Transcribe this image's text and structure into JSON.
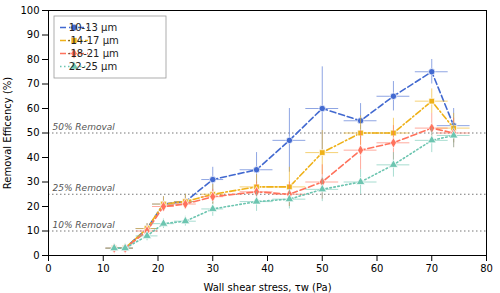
{
  "chart_data": {
    "type": "line",
    "xlabel": "Wall shear stress, τw (Pa)",
    "ylabel": "Removal Efficency (%)",
    "xlim": [
      0,
      80
    ],
    "ylim": [
      0,
      100
    ],
    "xticks": [
      0,
      10,
      20,
      30,
      40,
      50,
      60,
      70,
      80
    ],
    "yticks": [
      0,
      10,
      20,
      30,
      40,
      50,
      60,
      70,
      80,
      90,
      100
    ],
    "grid": false,
    "legend": "upper left",
    "annotations": [
      {
        "y": 50,
        "text": "50% Removal"
      },
      {
        "y": 25,
        "text": "25% Removal"
      },
      {
        "y": 10,
        "text": "10% Removal"
      }
    ],
    "series": [
      {
        "name": "10-13 μm",
        "marker": "circle",
        "line_style": "dashed",
        "x": [
          12,
          14,
          18,
          21,
          25,
          30,
          38,
          44,
          50,
          57,
          63,
          70,
          74
        ],
        "values": [
          3,
          3,
          11,
          21,
          22,
          31,
          35,
          47,
          60,
          55,
          65,
          75,
          53
        ],
        "xerr": [
          1.5,
          1.5,
          2,
          2,
          2,
          2,
          3,
          3,
          3,
          3,
          3,
          3,
          3
        ],
        "yerr": [
          1,
          1,
          2,
          3,
          3,
          5,
          7,
          13,
          17,
          7,
          6,
          5,
          7
        ]
      },
      {
        "name": "·14-17 μm",
        "marker": "square",
        "line_style": "dashdot",
        "x": [
          12,
          14,
          18,
          21,
          25,
          30,
          38,
          44,
          50,
          57,
          63,
          70,
          74
        ],
        "values": [
          3,
          3,
          11,
          21,
          22,
          25,
          28,
          28,
          42,
          50,
          50,
          63,
          52
        ],
        "xerr": [
          1.5,
          1.5,
          2,
          2,
          2,
          2,
          3,
          3,
          3,
          3,
          3,
          3,
          3
        ],
        "yerr": [
          1,
          1,
          2,
          3,
          3,
          4,
          5,
          8,
          9,
          7,
          6,
          5,
          6
        ]
      },
      {
        "name": "·18-21 μm",
        "marker": "diamond",
        "line_style": "dashed",
        "x": [
          12,
          14,
          18,
          21,
          25,
          30,
          38,
          44,
          50,
          57,
          63,
          70,
          74
        ],
        "values": [
          3,
          3,
          10,
          20,
          21,
          24,
          26,
          25,
          30,
          43,
          46,
          52,
          50
        ],
        "xerr": [
          1.5,
          1.5,
          2,
          2,
          2,
          2,
          3,
          3,
          3,
          3,
          3,
          3,
          3
        ],
        "yerr": [
          1,
          1,
          2,
          2,
          2,
          3,
          4,
          5,
          7,
          8,
          7,
          6,
          6
        ]
      },
      {
        "name": "22-25 μm",
        "marker": "triangle",
        "line_style": "dotted",
        "x": [
          12,
          14,
          18,
          21,
          25,
          30,
          38,
          44,
          50,
          57,
          63,
          70,
          74
        ],
        "values": [
          3,
          3,
          8,
          13,
          14,
          19,
          22,
          23,
          27,
          30,
          37,
          47,
          49
        ],
        "xerr": [
          1.5,
          1.5,
          2,
          2,
          2,
          2,
          3,
          3,
          3,
          3,
          3,
          3,
          3
        ],
        "yerr": [
          1,
          1,
          2,
          2,
          2,
          3,
          4,
          4,
          5,
          5,
          5,
          5,
          5
        ]
      }
    ]
  }
}
